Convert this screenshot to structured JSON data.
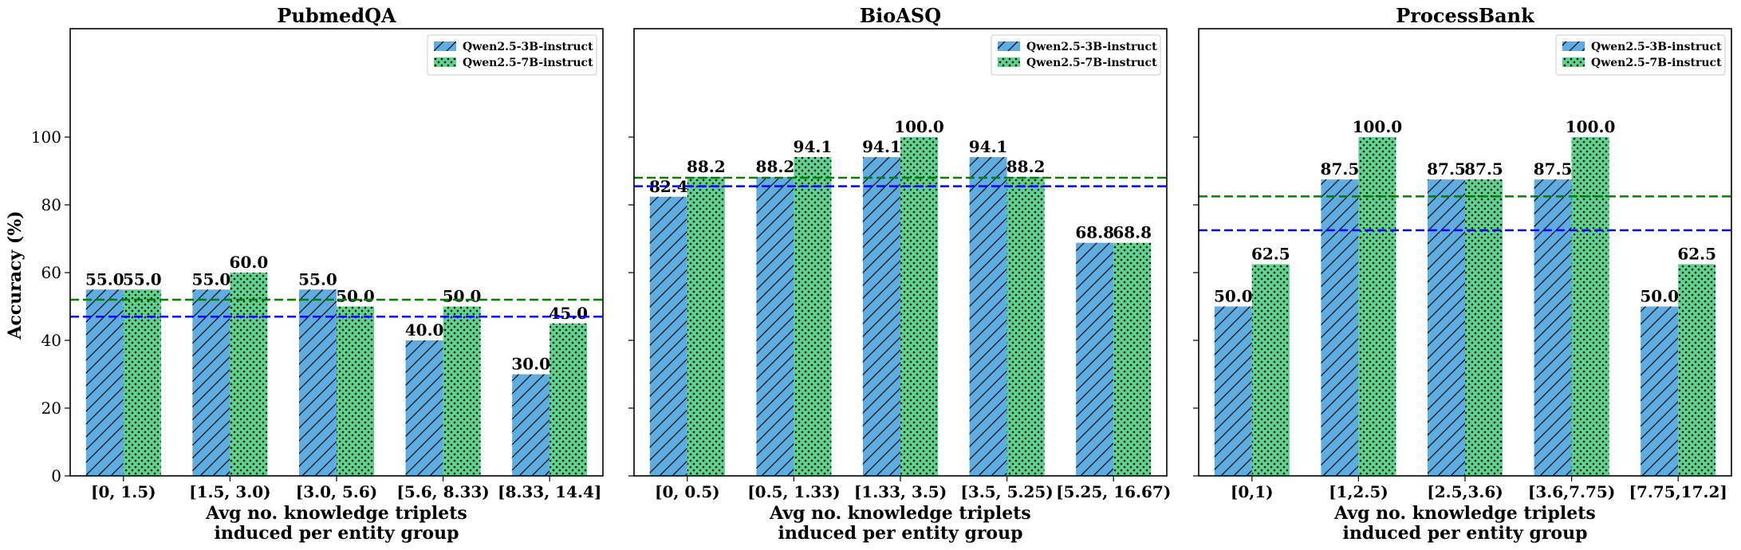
{
  "colors": {
    "series0": "#5DADE2",
    "series1": "#58D68D",
    "mean0": "#0000FF",
    "mean1": "#008000"
  },
  "ylabel": "Accuracy (%)",
  "chart_data": [
    {
      "type": "bar",
      "title": "PubmedQA",
      "categories": [
        "[0, 1.5)",
        "[1.5, 3.0)",
        "[3.0, 5.6)",
        "[5.6, 8.33)",
        "[8.33, 14.4]"
      ],
      "series": [
        {
          "name": "Qwen2.5-3B-instruct",
          "values": [
            55.0,
            55.0,
            55.0,
            40.0,
            30.0
          ],
          "labels": [
            "55.0",
            "55.0",
            "55.0",
            "40.0",
            "30.0"
          ],
          "mean": 47.0
        },
        {
          "name": "Qwen2.5-7B-instruct",
          "values": [
            55.0,
            60.0,
            50.0,
            50.0,
            45.0
          ],
          "labels": [
            "55.0",
            "60.0",
            "50.0",
            "50.0",
            "45.0"
          ],
          "mean": 52.0
        }
      ],
      "xlabel": [
        "Avg no. knowledge triplets",
        "induced per entity group"
      ],
      "ylabel": "Accuracy (%)",
      "ylim": [
        0,
        132
      ],
      "yticks": [
        "0",
        "20",
        "40",
        "60",
        "80",
        "100"
      ],
      "legend": "top-right"
    },
    {
      "type": "bar",
      "title": "BioASQ",
      "categories": [
        "[0, 0.5)",
        "[0.5, 1.33)",
        "[1.33, 3.5)",
        "[3.5, 5.25)",
        "[5.25, 16.67)"
      ],
      "series": [
        {
          "name": "Qwen2.5-3B-instruct",
          "values": [
            82.4,
            88.2,
            94.1,
            94.1,
            68.8
          ],
          "labels": [
            "82.4",
            "88.2",
            "94.1",
            "94.1",
            "68.8"
          ],
          "mean": 85.5
        },
        {
          "name": "Qwen2.5-7B-instruct",
          "values": [
            88.2,
            94.1,
            100.0,
            88.2,
            68.8
          ],
          "labels": [
            "88.2",
            "94.1",
            "100.0",
            "88.2",
            "68.8"
          ],
          "mean": 88.0
        }
      ],
      "xlabel": [
        "Avg no. knowledge triplets",
        "induced per entity group"
      ],
      "ylim": [
        0,
        132
      ],
      "yticks": [
        "0",
        "20",
        "40",
        "60",
        "80",
        "100"
      ],
      "legend": "top-right"
    },
    {
      "type": "bar",
      "title": "ProcessBank",
      "categories": [
        "[0,1)",
        "[1,2.5)",
        "[2.5,3.6)",
        "[3.6,7.75)",
        "[7.75,17.2]"
      ],
      "series": [
        {
          "name": "Qwen2.5-3B-instruct",
          "values": [
            50.0,
            87.5,
            87.5,
            87.5,
            50.0
          ],
          "labels": [
            "50.0",
            "87.5",
            "87.5",
            "87.5",
            "50.0"
          ],
          "mean": 72.5
        },
        {
          "name": "Qwen2.5-7B-instruct",
          "values": [
            62.5,
            100.0,
            87.5,
            100.0,
            62.5
          ],
          "labels": [
            "62.5",
            "100.0",
            "87.5",
            "100.0",
            "62.5"
          ],
          "mean": 82.5
        }
      ],
      "xlabel": [
        "Avg no. knowledge triplets",
        "induced per entity group"
      ],
      "ylim": [
        0,
        132
      ],
      "yticks": [
        "0",
        "20",
        "40",
        "60",
        "80",
        "100"
      ],
      "legend": "top-right"
    }
  ]
}
